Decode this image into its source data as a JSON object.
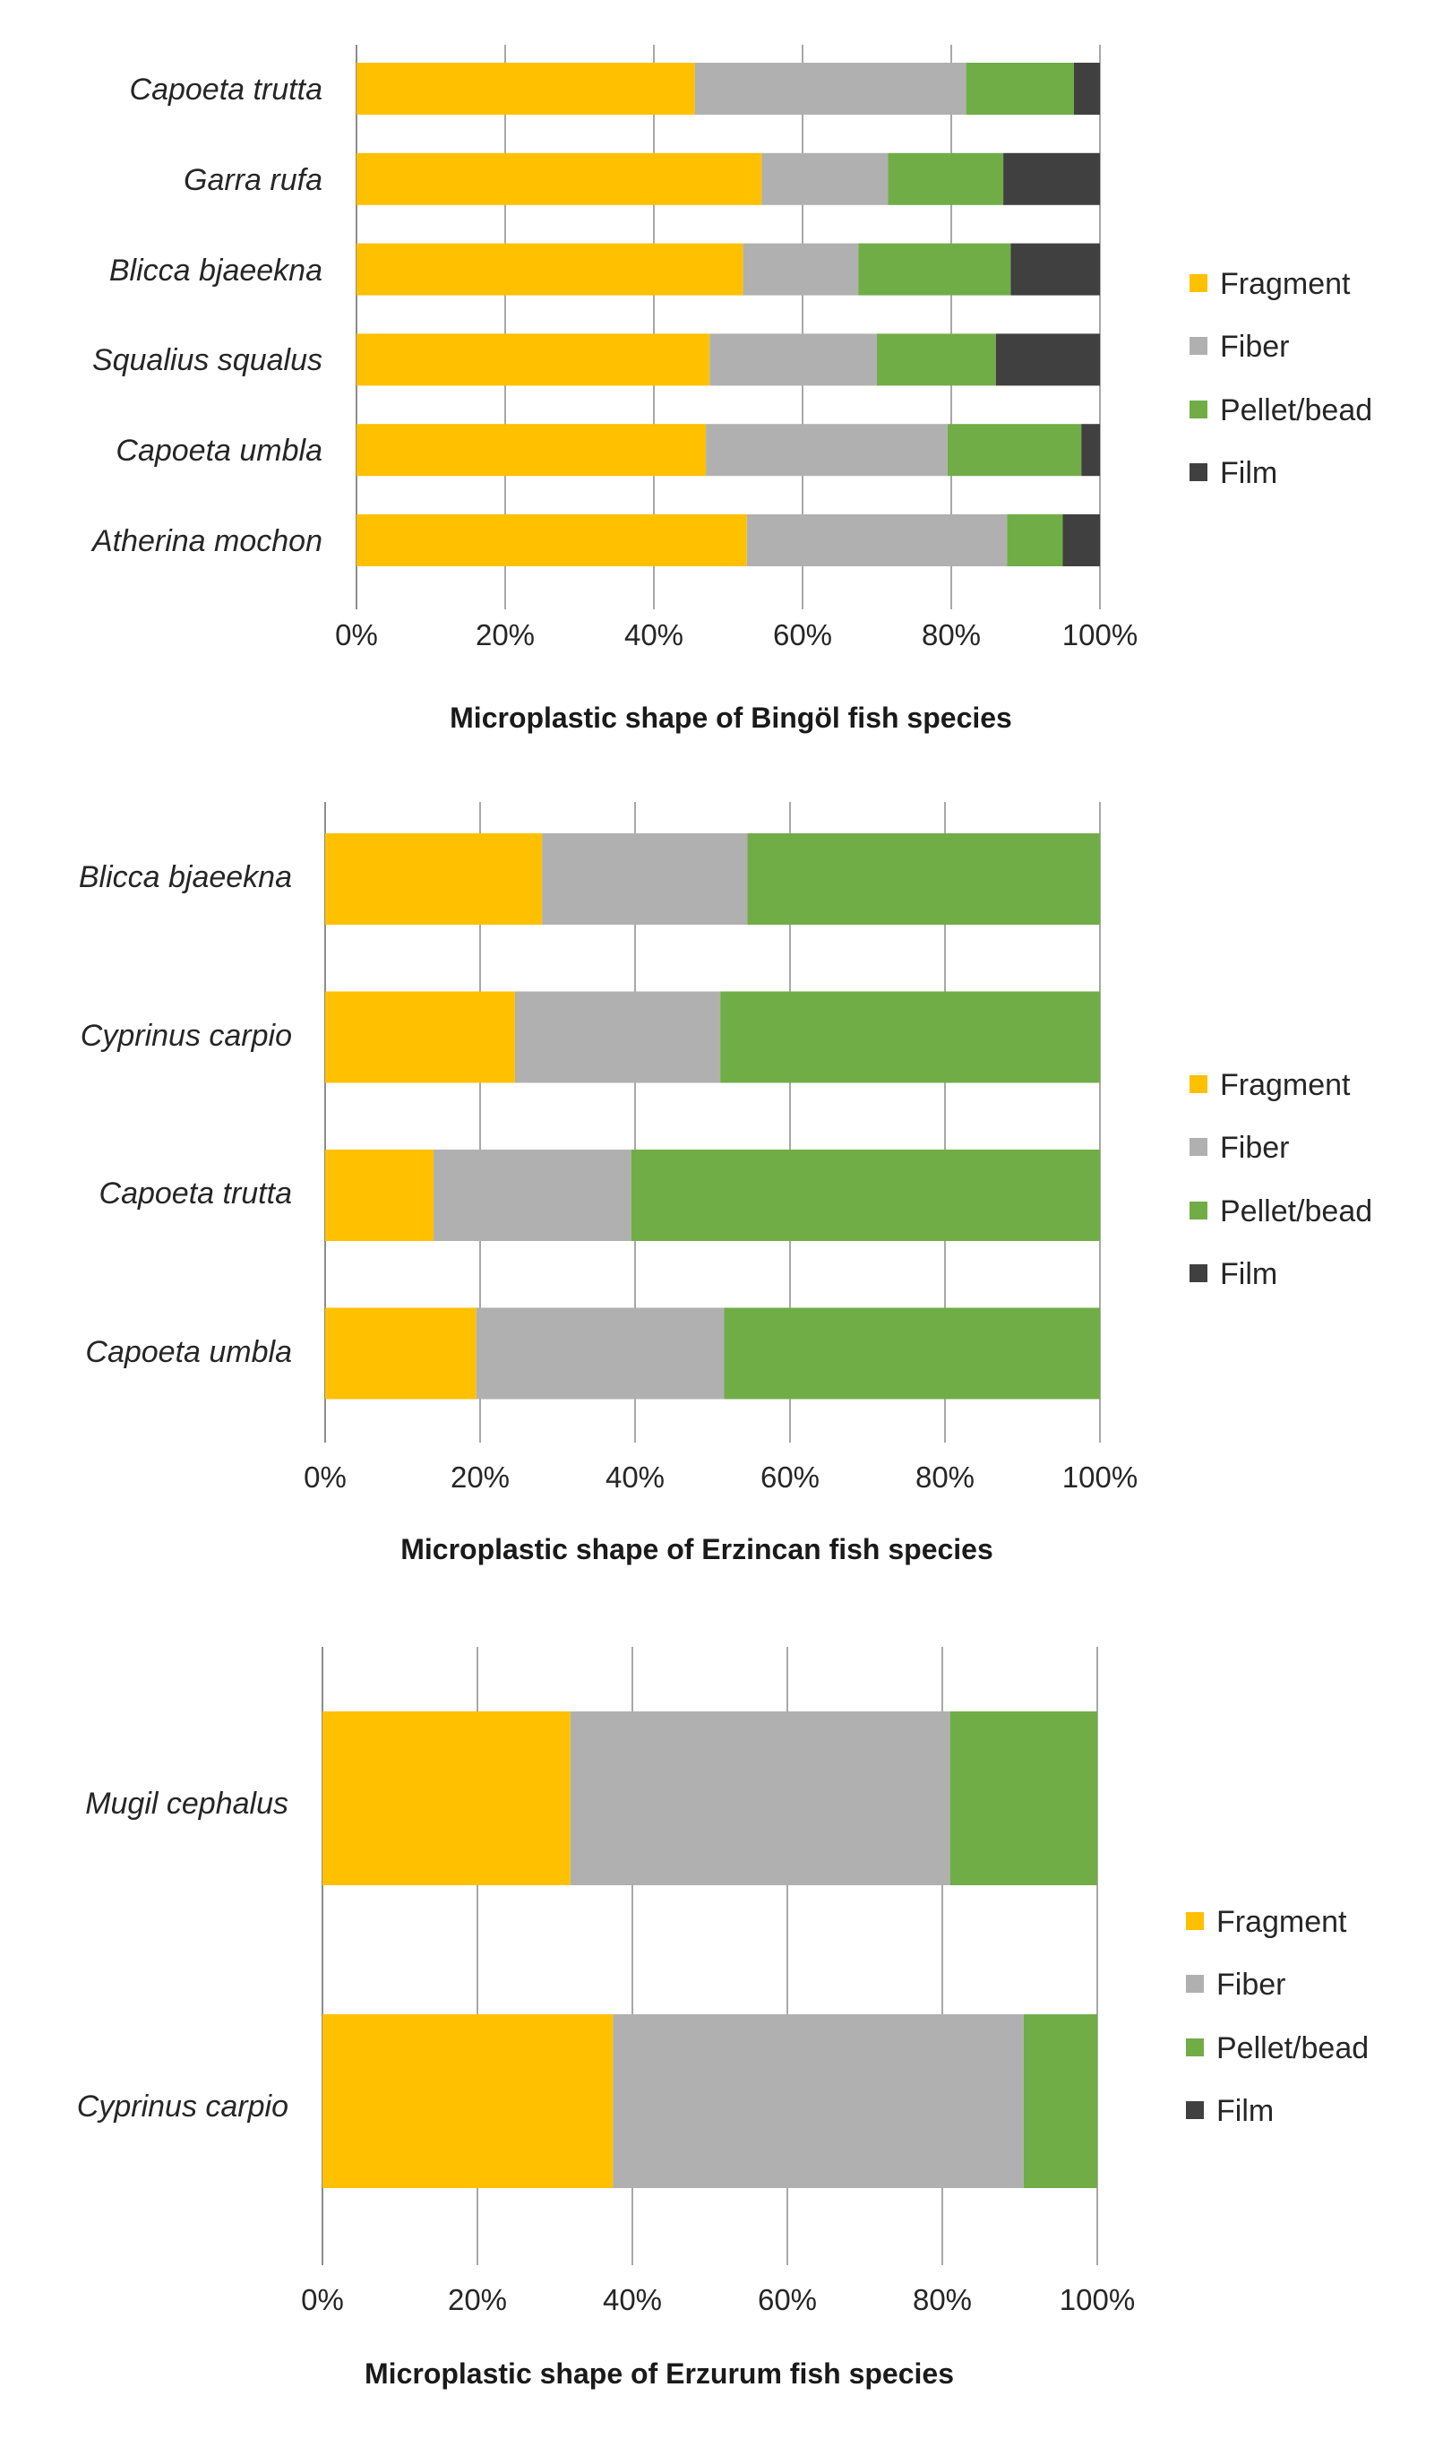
{
  "legend_order": [
    "Fragment",
    "Fiber",
    "Pellet/bead",
    "Film"
  ],
  "colors": {
    "Fragment": "#FFC000",
    "Fiber": "#B0B0B0",
    "Pellet/bead": "#70AD47",
    "Film": "#404040",
    "grid": "#8c8c8c"
  },
  "chart_data": [
    {
      "type": "bar",
      "orientation": "horizontal",
      "stacked": "percent",
      "title": "Microplastic shape of Bingöl fish species",
      "categories": [
        "Capoeta trutta",
        "Garra rufa",
        "Blicca bjaeekna",
        "Squalius squalus",
        "Capoeta umbla",
        "Atherina mochon"
      ],
      "series": [
        {
          "name": "Fragment",
          "values": [
            45.5,
            54.5,
            52,
            47.5,
            47,
            52.5
          ]
        },
        {
          "name": "Fiber",
          "values": [
            36.5,
            17,
            15.5,
            22.5,
            32.5,
            35
          ]
        },
        {
          "name": "Pellet/bead",
          "values": [
            14.5,
            15.5,
            20.5,
            16,
            18,
            7.5
          ]
        },
        {
          "name": "Film",
          "values": [
            3.5,
            13,
            12,
            14,
            2.5,
            5
          ]
        }
      ],
      "xticks": [
        "0%",
        "20%",
        "40%",
        "60%",
        "80%",
        "100%"
      ],
      "xlim": [
        0,
        100
      ],
      "legend_position": "right"
    },
    {
      "type": "bar",
      "orientation": "horizontal",
      "stacked": "percent",
      "title": "Microplastic shape of Erzincan fish species",
      "categories": [
        "Blicca bjaeekna",
        "Cyprinus carpio",
        "Capoeta trutta",
        "Capoeta umbla"
      ],
      "series": [
        {
          "name": "Fragment",
          "values": [
            28,
            24.5,
            14,
            19.5
          ]
        },
        {
          "name": "Fiber",
          "values": [
            26.5,
            26.5,
            25.5,
            32
          ]
        },
        {
          "name": "Pellet/bead",
          "values": [
            45.5,
            49,
            60.5,
            48.5
          ]
        },
        {
          "name": "Film",
          "values": [
            0,
            0,
            0,
            0
          ]
        }
      ],
      "xticks": [
        "0%",
        "20%",
        "40%",
        "60%",
        "80%",
        "100%"
      ],
      "xlim": [
        0,
        100
      ],
      "legend_position": "right"
    },
    {
      "type": "bar",
      "orientation": "horizontal",
      "stacked": "percent",
      "title": "Microplastic shape of Erzurum fish species",
      "categories": [
        "Mugil cephalus",
        "Cyprinus carpio"
      ],
      "series": [
        {
          "name": "Fragment",
          "values": [
            32,
            37.5
          ]
        },
        {
          "name": "Fiber",
          "values": [
            49,
            53
          ]
        },
        {
          "name": "Pellet/bead",
          "values": [
            19,
            9.5
          ]
        },
        {
          "name": "Film",
          "values": [
            0,
            0
          ]
        }
      ],
      "xticks": [
        "0%",
        "20%",
        "40%",
        "60%",
        "80%",
        "100%"
      ],
      "xlim": [
        0,
        100
      ],
      "legend_position": "right"
    }
  ]
}
